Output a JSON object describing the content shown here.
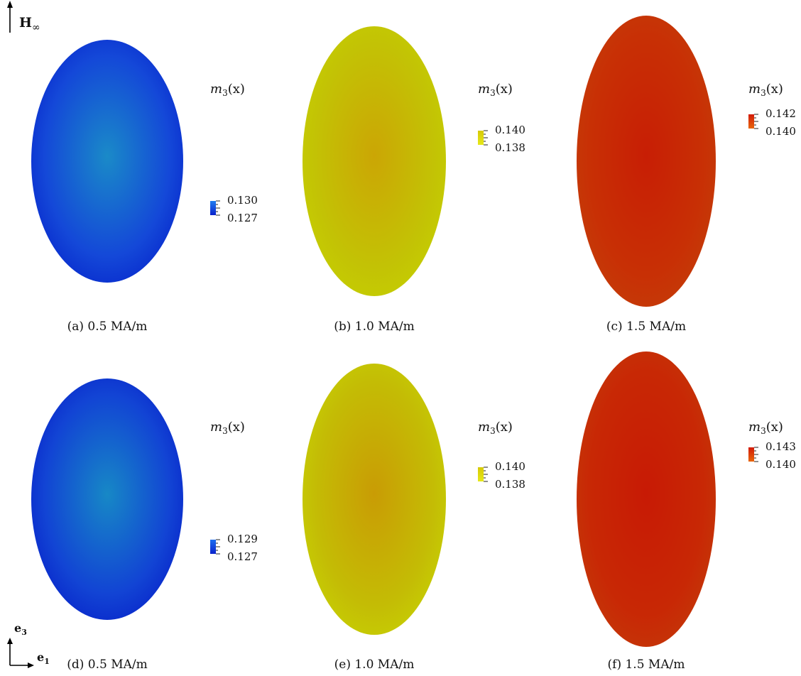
{
  "field_annotation": {
    "symbol": "H",
    "subscript": "∞"
  },
  "axes_annotation": {
    "vertical": "e",
    "vertical_sub": "3",
    "horizontal": "e",
    "horizontal_sub": "1"
  },
  "panels": [
    {
      "caption": "(a) 0.5 MA/m",
      "colorbar_title_var": "m",
      "colorbar_title_sub": "3",
      "colorbar_title_arg": "(x)",
      "tick_high": "0.130",
      "tick_low": "0.127",
      "color_center": "#1a8ac8",
      "color_edge": "#1448d8",
      "color_rim": "#0a2fcf",
      "bar_top": "#1f7ef0",
      "bar_bottom": "#0a22cc"
    },
    {
      "caption": "(b) 1.0 MA/m",
      "colorbar_title_var": "m",
      "colorbar_title_sub": "3",
      "colorbar_title_arg": "(x)",
      "tick_high": "0.140",
      "tick_low": "0.138",
      "color_center": "#cba605",
      "color_edge": "#c3c205",
      "color_rim": "#c4cc02",
      "bar_top": "#d6c905",
      "bar_bottom": "#e6e81a"
    },
    {
      "caption": "(c) 1.5 MA/m",
      "colorbar_title_var": "m",
      "colorbar_title_sub": "3",
      "colorbar_title_arg": "(x)",
      "tick_high": "0.142",
      "tick_low": "0.140",
      "color_center": "#c81e05",
      "color_edge": "#c83005",
      "color_rim": "#c53a08",
      "bar_top": "#d21a08",
      "bar_bottom": "#e8660a"
    },
    {
      "caption": "(d) 0.5 MA/m",
      "colorbar_title_var": "m",
      "colorbar_title_sub": "3",
      "colorbar_title_arg": "(x)",
      "tick_high": "0.129",
      "tick_low": "0.127",
      "color_center": "#1788c6",
      "color_edge": "#1244d4",
      "color_rim": "#0a2bcc",
      "bar_top": "#1b6ef0",
      "bar_bottom": "#0a22cc"
    },
    {
      "caption": "(e) 1.0 MA/m",
      "colorbar_title_var": "m",
      "colorbar_title_sub": "3",
      "colorbar_title_arg": "(x)",
      "tick_high": "0.140",
      "tick_low": "0.138",
      "color_center": "#c99c05",
      "color_edge": "#c4bc05",
      "color_rim": "#c6cc04",
      "bar_top": "#d6c905",
      "bar_bottom": "#e6e81a"
    },
    {
      "caption": "(f) 1.5 MA/m",
      "colorbar_title_var": "m",
      "colorbar_title_sub": "3",
      "colorbar_title_arg": "(x)",
      "tick_high": "0.143",
      "tick_low": "0.140",
      "color_center": "#c81a05",
      "color_edge": "#c82805",
      "color_rim": "#c53508",
      "bar_top": "#d21a08",
      "bar_bottom": "#e8660a"
    }
  ]
}
